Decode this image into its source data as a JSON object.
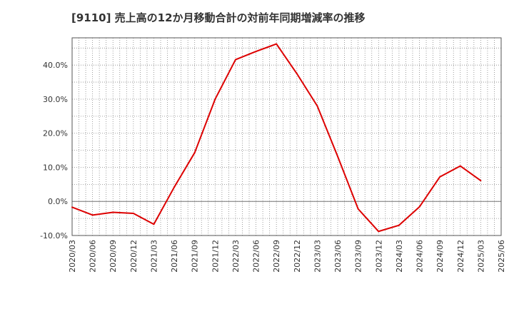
{
  "title": "[9110]  売上高の12か月移動合計の対前年同期増減率の推移",
  "chart_data": {
    "type": "line",
    "title": "[9110]  売上高の12か月移動合計の対前年同期増減率の推移",
    "xlabel": "",
    "ylabel": "",
    "ylim": [
      -10,
      48
    ],
    "grid": true,
    "y_ticks": [
      "-10.0%",
      "0.0%",
      "10.0%",
      "20.0%",
      "30.0%",
      "40.0%"
    ],
    "y_tick_values": [
      -10,
      0,
      10,
      20,
      30,
      40
    ],
    "x_ticks": [
      "2020/03",
      "2020/06",
      "2020/09",
      "2020/12",
      "2021/03",
      "2021/06",
      "2021/09",
      "2021/12",
      "2022/03",
      "2022/06",
      "2022/09",
      "2022/12",
      "2023/03",
      "2023/06",
      "2023/09",
      "2023/12",
      "2024/03",
      "2024/06",
      "2024/09",
      "2024/12",
      "2025/03",
      "2025/06"
    ],
    "colors": {
      "series": "#dd0000",
      "grid": "#888888",
      "axis": "#555555"
    },
    "series": [
      {
        "x": [
          "2020/03",
          "2020/06",
          "2020/09",
          "2020/12",
          "2021/03",
          "2021/06",
          "2021/09",
          "2021/12",
          "2022/03",
          "2022/06",
          "2022/09",
          "2022/12",
          "2023/03",
          "2023/06",
          "2023/09",
          "2023/12",
          "2024/03",
          "2024/06",
          "2024/09",
          "2024/12",
          "2025/03"
        ],
        "values": [
          -1.7,
          -4.0,
          -3.2,
          -3.5,
          -6.7,
          4.2,
          14.3,
          30.0,
          41.6,
          44.0,
          46.2,
          37.5,
          28.0,
          13.2,
          -2.2,
          -8.8,
          -7.0,
          -1.6,
          7.2,
          10.4,
          6.1
        ]
      }
    ]
  }
}
